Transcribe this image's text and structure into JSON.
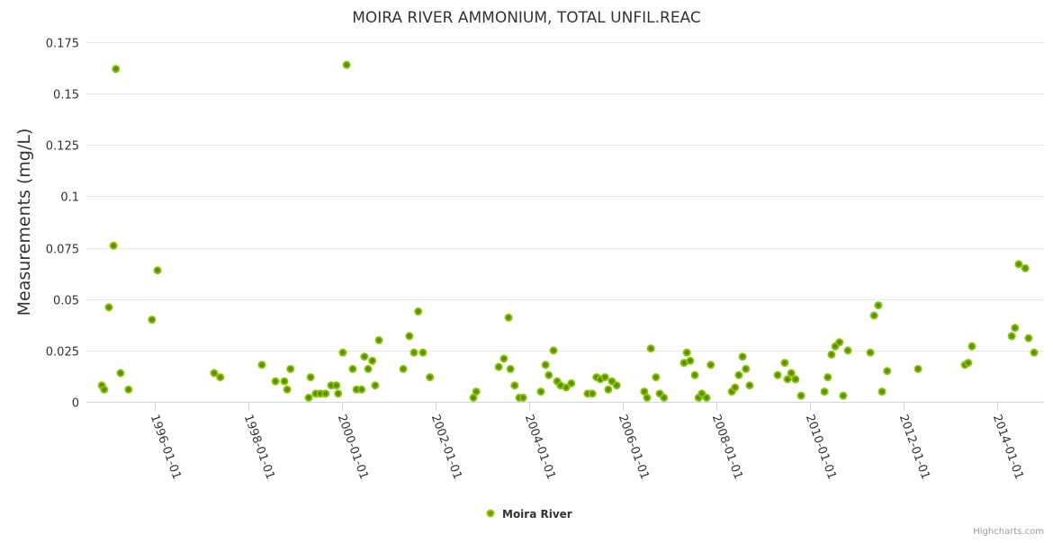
{
  "chart_data": {
    "type": "scatter",
    "title": "MOIRA RIVER AMMONIUM, TOTAL UNFIL.REAC",
    "xlabel": "",
    "ylabel": "Measurements (mg/L)",
    "ylim": [
      0,
      0.175
    ],
    "xlim": [
      1994.54,
      2015.0
    ],
    "grid": true,
    "legend_position": "bottom-center",
    "y_ticks": [
      {
        "value": 0,
        "label": "0"
      },
      {
        "value": 0.025,
        "label": "0.025"
      },
      {
        "value": 0.05,
        "label": "0.05"
      },
      {
        "value": 0.075,
        "label": "0.075"
      },
      {
        "value": 0.1,
        "label": "0.1"
      },
      {
        "value": 0.125,
        "label": "0.125"
      },
      {
        "value": 0.15,
        "label": "0.15"
      },
      {
        "value": 0.175,
        "label": "0.175"
      }
    ],
    "x_ticks": [
      {
        "value": 1996,
        "label": "1996-01-01"
      },
      {
        "value": 1998,
        "label": "1998-01-01"
      },
      {
        "value": 2000,
        "label": "2000-01-01"
      },
      {
        "value": 2002,
        "label": "2002-01-01"
      },
      {
        "value": 2004,
        "label": "2004-01-01"
      },
      {
        "value": 2006,
        "label": "2006-01-01"
      },
      {
        "value": 2008,
        "label": "2008-01-01"
      },
      {
        "value": 2010,
        "label": "2010-01-01"
      },
      {
        "value": 2012,
        "label": "2012-01-01"
      },
      {
        "value": 2014,
        "label": "2014-01-01"
      }
    ],
    "series": [
      {
        "name": "Moira River",
        "color": "#669900",
        "points": [
          [
            1994.87,
            0.008
          ],
          [
            1994.92,
            0.006
          ],
          [
            1995.02,
            0.046
          ],
          [
            1995.12,
            0.076
          ],
          [
            1995.17,
            0.162
          ],
          [
            1995.27,
            0.014
          ],
          [
            1995.44,
            0.006
          ],
          [
            1995.94,
            0.04
          ],
          [
            1996.06,
            0.064
          ],
          [
            1997.27,
            0.014
          ],
          [
            1997.4,
            0.012
          ],
          [
            1998.29,
            0.018
          ],
          [
            1998.58,
            0.01
          ],
          [
            1998.77,
            0.01
          ],
          [
            1998.83,
            0.006
          ],
          [
            1998.9,
            0.016
          ],
          [
            1999.29,
            0.002
          ],
          [
            1999.33,
            0.012
          ],
          [
            1999.44,
            0.004
          ],
          [
            1999.54,
            0.004
          ],
          [
            1999.65,
            0.004
          ],
          [
            1999.77,
            0.008
          ],
          [
            1999.88,
            0.008
          ],
          [
            1999.92,
            0.004
          ],
          [
            2000.02,
            0.024
          ],
          [
            2000.1,
            0.164
          ],
          [
            2000.23,
            0.016
          ],
          [
            2000.31,
            0.006
          ],
          [
            2000.42,
            0.006
          ],
          [
            2000.48,
            0.022
          ],
          [
            2000.56,
            0.016
          ],
          [
            2000.65,
            0.02
          ],
          [
            2000.71,
            0.008
          ],
          [
            2000.79,
            0.03
          ],
          [
            2001.31,
            0.016
          ],
          [
            2001.44,
            0.032
          ],
          [
            2001.54,
            0.024
          ],
          [
            2001.63,
            0.044
          ],
          [
            2001.73,
            0.024
          ],
          [
            2001.88,
            0.012
          ],
          [
            2002.81,
            0.002
          ],
          [
            2002.87,
            0.005
          ],
          [
            2003.35,
            0.017
          ],
          [
            2003.46,
            0.021
          ],
          [
            2003.56,
            0.041
          ],
          [
            2003.6,
            0.016
          ],
          [
            2003.69,
            0.008
          ],
          [
            2003.79,
            0.002
          ],
          [
            2003.87,
            0.002
          ],
          [
            2004.25,
            0.005
          ],
          [
            2004.35,
            0.018
          ],
          [
            2004.42,
            0.013
          ],
          [
            2004.52,
            0.025
          ],
          [
            2004.6,
            0.01
          ],
          [
            2004.67,
            0.008
          ],
          [
            2004.79,
            0.007
          ],
          [
            2004.9,
            0.009
          ],
          [
            2005.25,
            0.004
          ],
          [
            2005.35,
            0.004
          ],
          [
            2005.44,
            0.012
          ],
          [
            2005.52,
            0.011
          ],
          [
            2005.62,
            0.012
          ],
          [
            2005.69,
            0.006
          ],
          [
            2005.77,
            0.01
          ],
          [
            2005.87,
            0.008
          ],
          [
            2006.46,
            0.005
          ],
          [
            2006.52,
            0.002
          ],
          [
            2006.6,
            0.026
          ],
          [
            2006.71,
            0.012
          ],
          [
            2006.79,
            0.004
          ],
          [
            2006.88,
            0.002
          ],
          [
            2007.31,
            0.019
          ],
          [
            2007.37,
            0.024
          ],
          [
            2007.44,
            0.02
          ],
          [
            2007.54,
            0.013
          ],
          [
            2007.62,
            0.002
          ],
          [
            2007.69,
            0.004
          ],
          [
            2007.79,
            0.002
          ],
          [
            2007.88,
            0.018
          ],
          [
            2008.33,
            0.005
          ],
          [
            2008.4,
            0.007
          ],
          [
            2008.48,
            0.013
          ],
          [
            2008.56,
            0.022
          ],
          [
            2008.63,
            0.016
          ],
          [
            2008.71,
            0.008
          ],
          [
            2009.31,
            0.013
          ],
          [
            2009.46,
            0.019
          ],
          [
            2009.52,
            0.011
          ],
          [
            2009.6,
            0.014
          ],
          [
            2009.69,
            0.011
          ],
          [
            2009.81,
            0.003
          ],
          [
            2010.31,
            0.005
          ],
          [
            2010.38,
            0.012
          ],
          [
            2010.46,
            0.023
          ],
          [
            2010.54,
            0.027
          ],
          [
            2010.63,
            0.029
          ],
          [
            2010.71,
            0.003
          ],
          [
            2010.81,
            0.025
          ],
          [
            2011.29,
            0.024
          ],
          [
            2011.37,
            0.042
          ],
          [
            2011.46,
            0.047
          ],
          [
            2011.54,
            0.005
          ],
          [
            2011.65,
            0.015
          ],
          [
            2012.31,
            0.016
          ],
          [
            2013.31,
            0.018
          ],
          [
            2013.38,
            0.019
          ],
          [
            2013.46,
            0.027
          ],
          [
            2014.31,
            0.032
          ],
          [
            2014.38,
            0.036
          ],
          [
            2014.46,
            0.067
          ],
          [
            2014.6,
            0.065
          ],
          [
            2014.67,
            0.031
          ],
          [
            2014.79,
            0.024
          ]
        ]
      }
    ],
    "credits": "Highcharts.com"
  }
}
